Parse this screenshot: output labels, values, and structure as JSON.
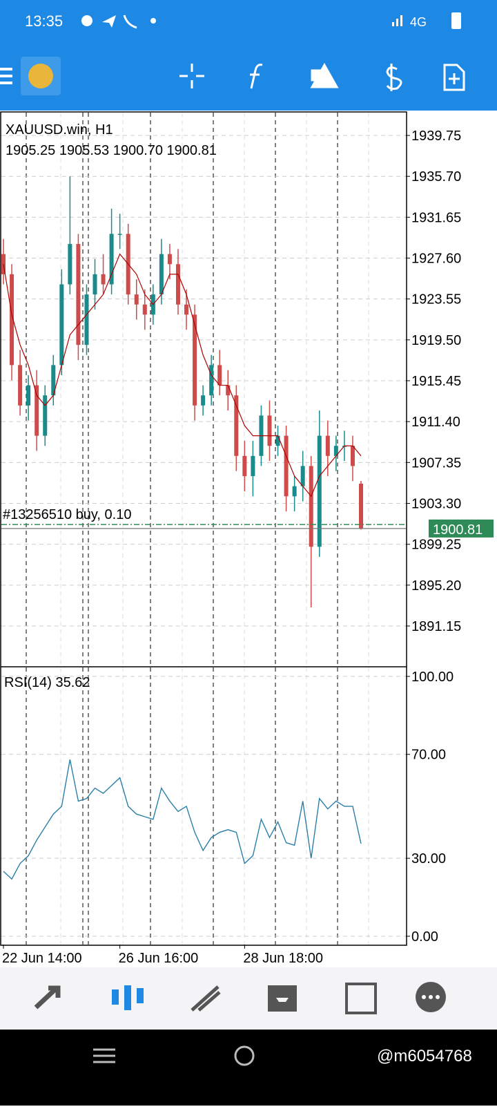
{
  "status_bar": {
    "time": "13:35",
    "network": "4G"
  },
  "watermark": "@m6054768",
  "chart_data": [
    {
      "type": "candlestick",
      "title": "XAUUSD.win, H1",
      "ohlc_label": "1905.25 1905.53 1900.70 1900.81",
      "categories": [
        "22 Jun 14:00",
        null,
        null,
        null,
        null,
        null,
        null,
        null,
        null,
        null,
        null,
        null,
        null,
        null,
        "26 Jun 16:00",
        null,
        null,
        null,
        null,
        null,
        null,
        null,
        null,
        null,
        null,
        null,
        null,
        null,
        null,
        "28 Jun 18:00",
        null,
        null,
        null,
        null,
        null,
        null,
        null,
        null,
        null,
        null,
        null,
        null,
        null,
        null
      ],
      "open": [
        1928,
        1926,
        1917,
        1913,
        1915,
        1910,
        1914,
        1917,
        1925,
        1929,
        1919,
        1924,
        1926,
        1925,
        1930,
        1930,
        1924,
        1923,
        1922,
        1924,
        1928,
        1927,
        1923,
        1922,
        1913,
        1914,
        1917,
        1915,
        1914,
        1908,
        1906,
        1908,
        1912,
        1909,
        1910,
        1904,
        1905,
        1907,
        1899,
        1910,
        1908,
        1909,
        1909,
        1905.25
      ],
      "high": [
        1929.5,
        1927,
        1918.5,
        1916,
        1916.5,
        1915,
        1918,
        1926.5,
        1935.7,
        1930,
        1925,
        1927.5,
        1928,
        1932.5,
        1932,
        1931,
        1925.5,
        1924.5,
        1925,
        1929.5,
        1929,
        1928.5,
        1924.5,
        1923,
        1915,
        1918,
        1918.5,
        1916.5,
        1915,
        1909.5,
        1909.5,
        1913,
        1913.5,
        1911,
        1911,
        1906,
        1908.5,
        1908,
        1912.5,
        1911.5,
        1910,
        1910.5,
        1910,
        1905.53
      ],
      "low": [
        1925,
        1915.5,
        1912,
        1911.5,
        1908.5,
        1909,
        1913,
        1916,
        1924,
        1917.5,
        1918,
        1922.5,
        1924,
        1924,
        1928.5,
        1923,
        1921.5,
        1920.5,
        1921,
        1923,
        1925.5,
        1922,
        1920.5,
        1911.5,
        1912,
        1913,
        1914,
        1912.5,
        1906.5,
        1904.5,
        1904,
        1907,
        1907.5,
        1908,
        1902.5,
        1902.5,
        1903.5,
        1893,
        1898,
        1906,
        1906.5,
        1907.5,
        1905.5,
        1900.7
      ],
      "close": [
        1926,
        1917,
        1913,
        1915,
        1910,
        1914,
        1917,
        1925,
        1929,
        1919,
        1924,
        1926,
        1925,
        1930,
        1930,
        1924,
        1923,
        1922,
        1924,
        1928,
        1927,
        1923,
        1922,
        1913,
        1914,
        1917,
        1915,
        1914,
        1908,
        1906,
        1908,
        1912,
        1909,
        1910,
        1904,
        1905,
        1907,
        1899,
        1910,
        1908,
        1909,
        1909,
        1907,
        1900.81
      ],
      "colors": {
        "up": "#1a8a8a",
        "down": "#cd4b4b"
      },
      "ma": {
        "color": "#b00000",
        "values": [
          1927,
          1922,
          1919,
          1917,
          1914,
          1913,
          1914,
          1917,
          1920,
          1921,
          1922,
          1923,
          1924,
          1926,
          1928,
          1927,
          1926,
          1924,
          1923,
          1924,
          1926,
          1926,
          1924,
          1921,
          1918,
          1916,
          1915,
          1915,
          1913,
          1911,
          1910,
          1910,
          1910,
          1910,
          1908,
          1906,
          1905,
          1904,
          1906,
          1907,
          1908,
          1909,
          1909,
          1908
        ]
      },
      "order": {
        "label": "#13256510 buy, 0.10",
        "price": 1901.2,
        "color": "#2e8b57"
      },
      "ylim": [
        1887.11,
        1942.08
      ],
      "yticks": [
        1939.75,
        {
          "value": 1935.7,
          "label": "1935.70"
        },
        1931.65,
        {
          "value": 1927.6,
          "label": "1927.60"
        },
        1923.55,
        {
          "value": 1919.5,
          "label": "1919.50"
        },
        1915.45,
        {
          "value": 1911.4,
          "label": "1911.40"
        },
        1907.35,
        {
          "value": 1903.3,
          "label": "1903.30"
        },
        1899.25,
        {
          "value": 1895.2,
          "label": "1895.20"
        },
        1891.15
      ],
      "grid": true
    },
    {
      "type": "line",
      "title": "RSI(14)",
      "color": "#2a7fa8",
      "values": [
        25,
        22,
        28,
        31,
        37,
        42,
        47,
        50,
        68,
        52,
        53,
        57,
        55,
        58,
        61,
        50,
        47,
        46,
        45,
        57,
        52,
        48,
        50,
        40,
        33,
        38,
        40,
        41,
        40,
        28,
        31,
        45,
        38,
        44,
        36,
        35,
        52,
        30,
        53,
        49,
        52,
        50,
        50,
        35.62
      ],
      "ylim": [
        -3.2,
        103.7
      ],
      "yticks": [
        {
          "value": 100,
          "label": "100.00"
        },
        {
          "value": 70,
          "label": "70.00"
        },
        {
          "value": 30,
          "label": "30.00"
        },
        {
          "value": 0,
          "label": "0.00"
        }
      ],
      "grid": true
    }
  ]
}
